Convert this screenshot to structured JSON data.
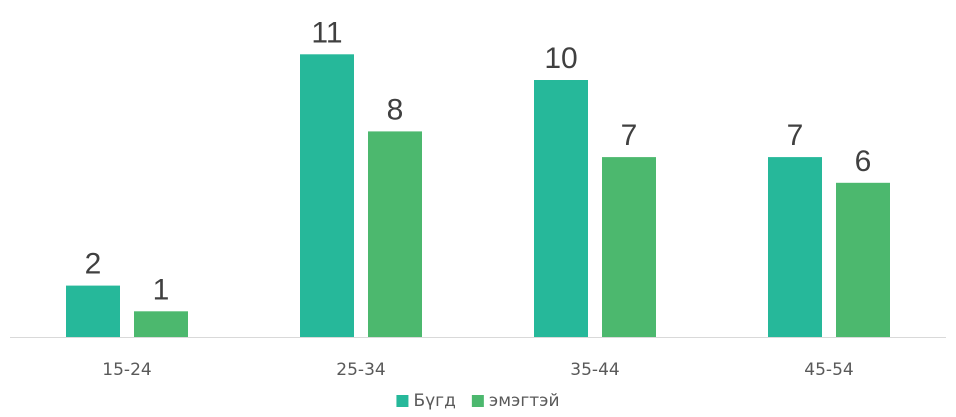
{
  "chart_data": {
    "type": "bar",
    "categories": [
      "15-24",
      "25-34",
      "35-44",
      "45-54"
    ],
    "series": [
      {
        "name": "Бүгд",
        "values": [
          2,
          11,
          10,
          7
        ],
        "color": "#26B89A"
      },
      {
        "name": "эмэгтэй",
        "values": [
          1,
          8,
          7,
          6
        ],
        "color": "#4CB86E"
      }
    ],
    "ylim": [
      0,
      11
    ],
    "grid": false,
    "legend_position": "bottom"
  }
}
